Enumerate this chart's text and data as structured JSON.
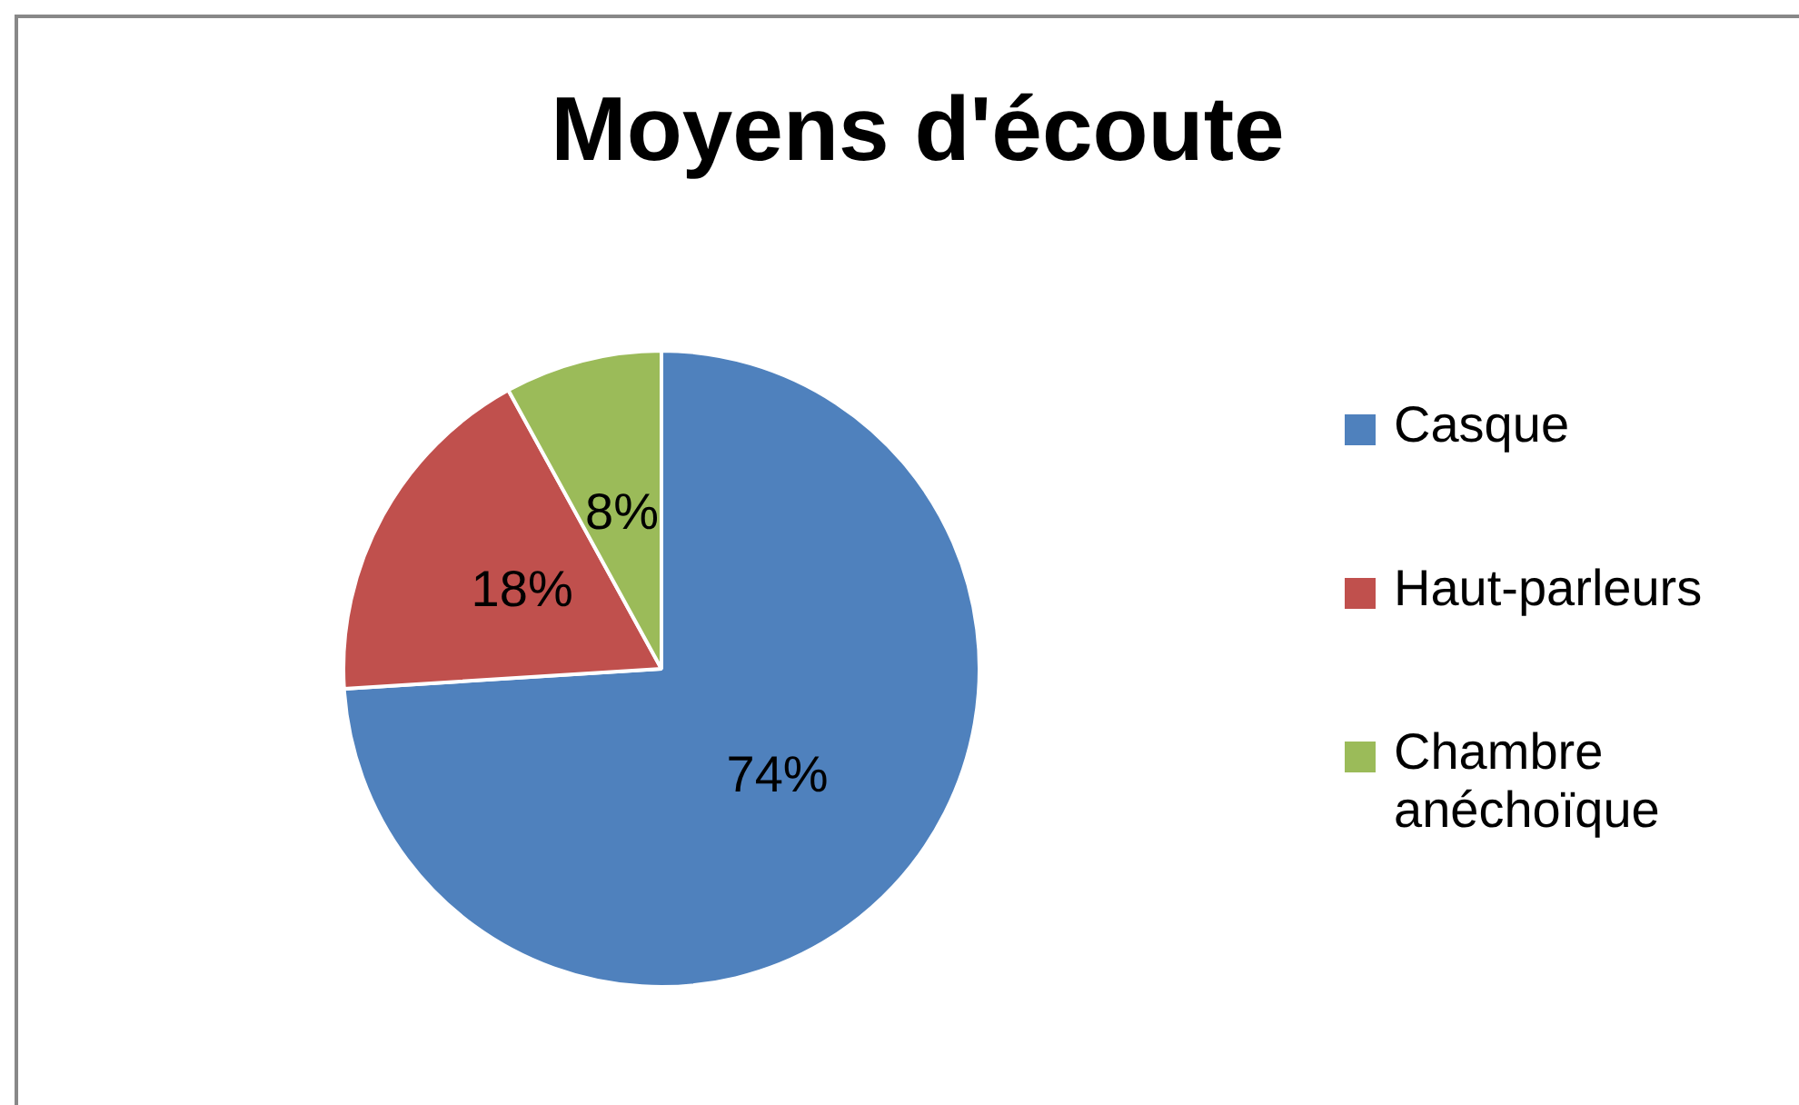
{
  "chart_data": {
    "type": "pie",
    "title": "Moyens d'écoute",
    "categories": [
      "Casque",
      "Haut-parleurs",
      "Chambre anéchoïque"
    ],
    "values": [
      74,
      18,
      8
    ],
    "value_labels": [
      "74%",
      "18%",
      "8%"
    ],
    "colors": [
      "#4f81bd",
      "#c0504d",
      "#9bbb59"
    ],
    "legend": "right"
  }
}
